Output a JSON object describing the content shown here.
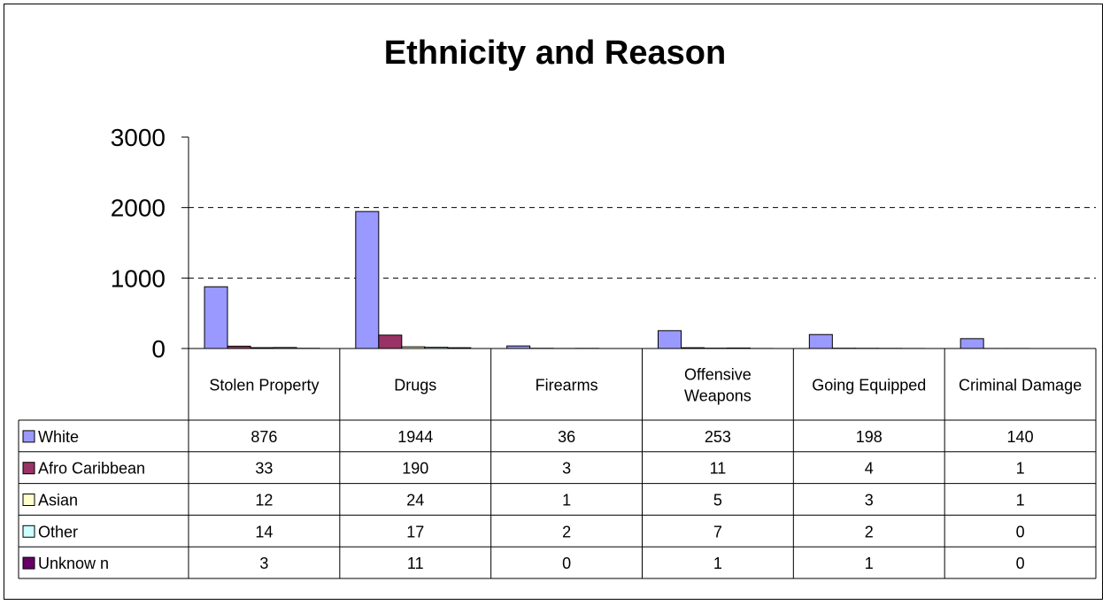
{
  "chart_data": {
    "type": "bar",
    "title": "Ethnicity and Reason",
    "categories": [
      "Stolen Property",
      "Drugs",
      "Firearms",
      "Offensive Weapons",
      "Going Equipped",
      "Criminal Damage"
    ],
    "category_label_lines": [
      [
        "Stolen Property"
      ],
      [
        "Drugs"
      ],
      [
        "Firearms"
      ],
      [
        "Offensive",
        "Weapons"
      ],
      [
        "Going Equipped"
      ],
      [
        "Criminal Damage"
      ]
    ],
    "series": [
      {
        "name": "White",
        "color": "#9999ff",
        "values": [
          876,
          1944,
          36,
          253,
          198,
          140
        ]
      },
      {
        "name": "Afro Caribbean",
        "color": "#993366",
        "values": [
          33,
          190,
          3,
          11,
          4,
          1
        ]
      },
      {
        "name": "Asian",
        "color": "#ffffcc",
        "values": [
          12,
          24,
          1,
          5,
          3,
          1
        ]
      },
      {
        "name": "Other",
        "color": "#ccffff",
        "values": [
          14,
          17,
          2,
          7,
          2,
          0
        ]
      },
      {
        "name": "Unknow n",
        "color": "#660066",
        "values": [
          3,
          11,
          0,
          1,
          1,
          0
        ]
      }
    ],
    "yticks": [
      0,
      1000,
      2000,
      3000
    ],
    "ylim": [
      0,
      3000
    ],
    "grid": "horizontal dashed",
    "legend": "data-table"
  }
}
